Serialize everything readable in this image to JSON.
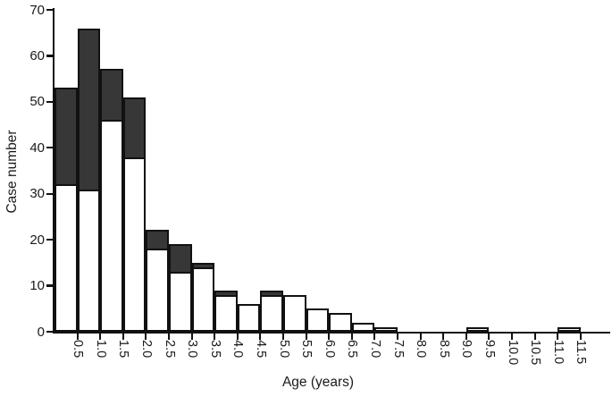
{
  "chart_data": {
    "type": "bar",
    "stacked": true,
    "title": "",
    "xlabel": "Age (years)",
    "ylabel": "Case number",
    "ylim": [
      0,
      70
    ],
    "yticks": [
      0,
      10,
      20,
      30,
      40,
      50,
      60,
      70
    ],
    "grid": false,
    "legend_position": "none",
    "categories": [
      "0.5",
      "1.0",
      "1.5",
      "2.0",
      "2.5",
      "3.0",
      "3.5",
      "4.0",
      "4.5",
      "5.0",
      "5.5",
      "6.0",
      "6.5",
      "7.0",
      "7.5",
      "8.0",
      "8.5",
      "9.0",
      "9.5",
      "10.0",
      "10.5",
      "11.0",
      "11.5"
    ],
    "series": [
      {
        "name": "lower-segment-white",
        "fill": "#ffffff",
        "values": [
          32,
          31,
          46,
          38,
          18,
          13,
          14,
          8,
          6,
          8,
          8,
          5,
          4,
          2,
          1,
          0,
          0,
          0,
          1,
          0,
          0,
          0,
          1
        ]
      },
      {
        "name": "upper-segment-dark",
        "fill": "#373737",
        "values": [
          21,
          35,
          11,
          13,
          4,
          6,
          1,
          1,
          0,
          1,
          0,
          0,
          0,
          0,
          0,
          0,
          0,
          0,
          0,
          0,
          0,
          0,
          0
        ]
      }
    ],
    "totals": [
      53,
      66,
      57,
      51,
      22,
      19,
      15,
      9,
      6,
      9,
      8,
      5,
      4,
      2,
      1,
      0,
      0,
      0,
      1,
      0,
      0,
      0,
      1
    ],
    "colors": {
      "bar_border": "#111111",
      "dark_fill": "#373737",
      "white_fill": "#ffffff",
      "text": "#1a1a1a"
    }
  }
}
